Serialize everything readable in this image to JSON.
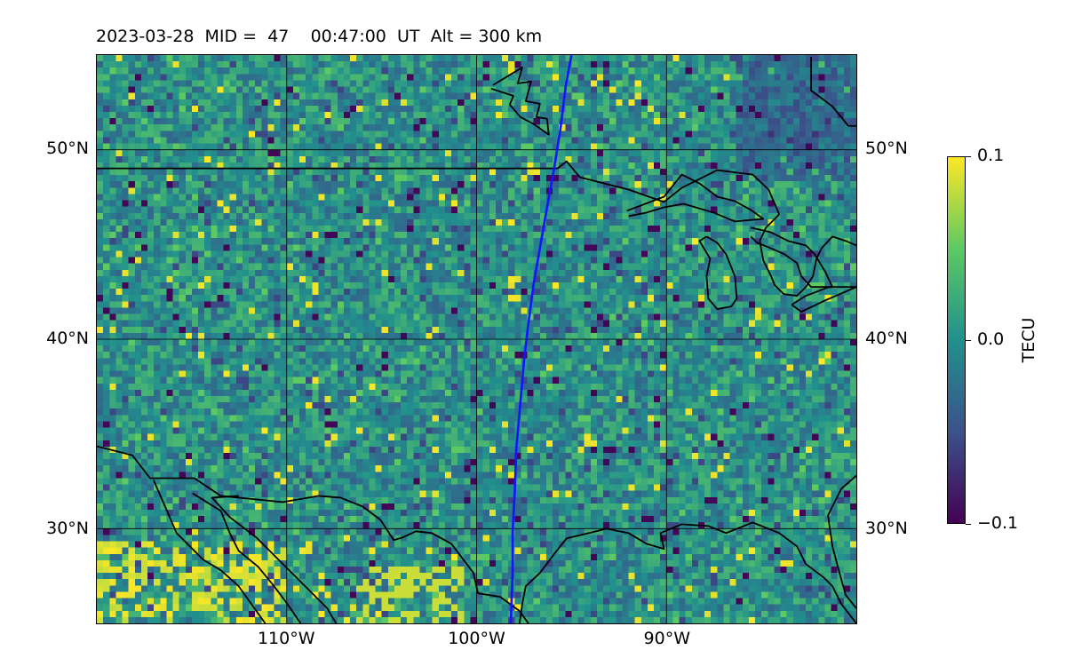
{
  "title": {
    "date": "2023-03-28",
    "mid_label": "MID =",
    "mid_value": "47",
    "time": "00:47:00",
    "time_unit": "UT",
    "alt_text": "Alt = 300 km"
  },
  "map": {
    "projection": "equirectangular",
    "lon_range": [
      -120,
      -80
    ],
    "lat_range": [
      25,
      55
    ],
    "background_field": "TEC residual grid, mostly near 0 with scattered positive and negative cells",
    "field_colors": [
      "#440154",
      "#3b528b",
      "#21908d",
      "#5dc963",
      "#fde725"
    ],
    "coastline_color": "#000000",
    "gridline_color": "#000000",
    "track_color": "#1414ff",
    "track_points": [
      [
        -95.0,
        55.0
      ],
      [
        -95.3,
        53.4
      ],
      [
        -95.6,
        51.0
      ],
      [
        -95.9,
        49.1
      ],
      [
        -96.3,
        46.9
      ],
      [
        -96.7,
        44.6
      ],
      [
        -97.0,
        42.9
      ],
      [
        -97.3,
        40.6
      ],
      [
        -97.5,
        38.9
      ],
      [
        -97.7,
        36.6
      ],
      [
        -97.9,
        34.3
      ],
      [
        -98.0,
        31.8
      ],
      [
        -98.1,
        29.9
      ],
      [
        -98.1,
        27.8
      ],
      [
        -98.2,
        25.0
      ]
    ]
  },
  "lat_ticks": [
    "30°N",
    "40°N",
    "50°N"
  ],
  "lat_tick_values": [
    30,
    40,
    50
  ],
  "lon_ticks": [
    "110°W",
    "100°W",
    "90°W"
  ],
  "lon_tick_values": [
    -110,
    -100,
    -90
  ],
  "colorbar": {
    "label": "TECU",
    "colormap": "viridis",
    "ticks": [
      "0.1",
      "0.0",
      "−0.1"
    ],
    "tick_values": [
      0.1,
      0.0,
      -0.1
    ],
    "range": [
      -0.1,
      0.1
    ]
  }
}
